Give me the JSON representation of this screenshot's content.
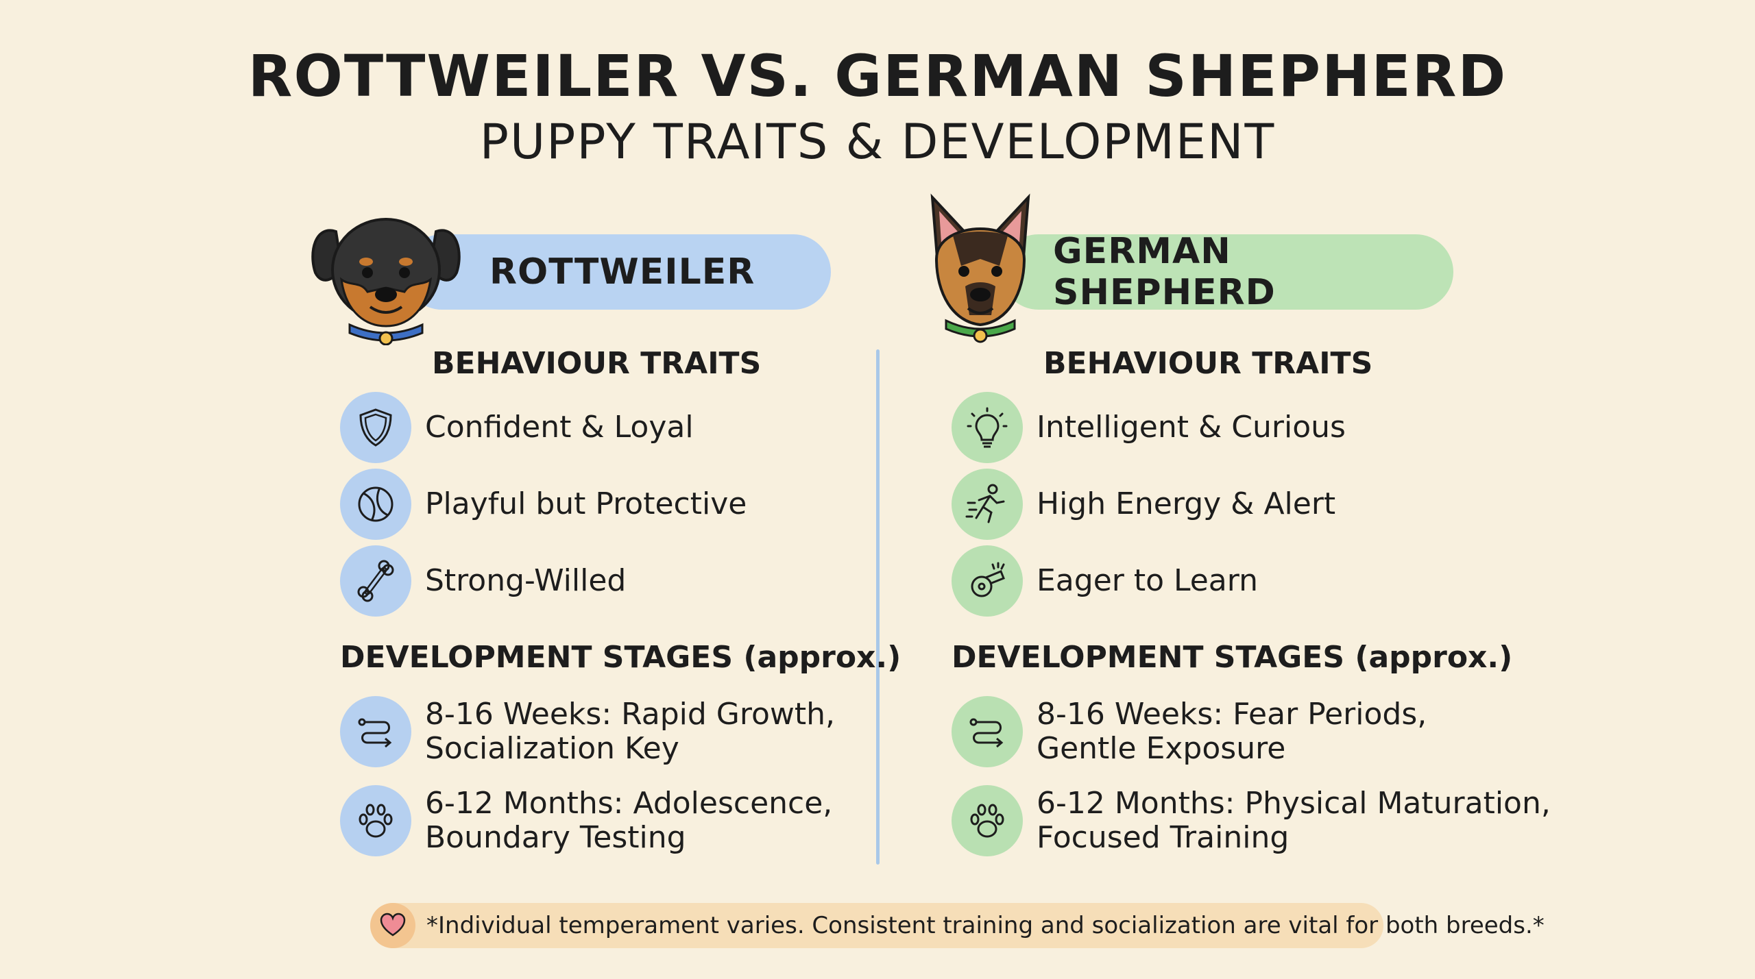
{
  "title": "ROTTWEILER VS. GERMAN SHEPHERD",
  "subtitle": "PUPPY TRAITS & DEVELOPMENT",
  "colors": {
    "background": "#f8f0de",
    "rottweiler_accent": "#b9d3f2",
    "german_shepherd_accent": "#bde3b6",
    "footer_bg": "#f6deb8"
  },
  "rottweiler": {
    "name": "ROTTWEILER",
    "behaviour_heading": "BEHAVIOUR TRAITS",
    "traits": [
      {
        "icon": "shield-icon",
        "label": "Confident & Loyal"
      },
      {
        "icon": "ball-icon",
        "label": "Playful but Protective"
      },
      {
        "icon": "bone-icon",
        "label": "Strong-Willed"
      }
    ],
    "development_heading": "DEVELOPMENT STAGES (approx.)",
    "stages": [
      {
        "icon": "path-icon",
        "line1": "8-16 Weeks: Rapid Growth,",
        "line2": "Socialization Key"
      },
      {
        "icon": "paw-icon",
        "line1": "6-12 Months: Adolescence,",
        "line2": "Boundary Testing"
      }
    ]
  },
  "german_shepherd": {
    "name": "GERMAN SHEPHERD",
    "behaviour_heading": "BEHAVIOUR TRAITS",
    "traits": [
      {
        "icon": "lightbulb-icon",
        "label": "Intelligent & Curious"
      },
      {
        "icon": "running-icon",
        "label": "High Energy & Alert"
      },
      {
        "icon": "whistle-icon",
        "label": "Eager to Learn"
      }
    ],
    "development_heading": "DEVELOPMENT STAGES (approx.)",
    "stages": [
      {
        "icon": "path-icon",
        "line1": "8-16 Weeks: Fear Periods,",
        "line2": "Gentle Exposure"
      },
      {
        "icon": "paw-icon",
        "line1": "6-12 Months: Physical Maturation,",
        "line2": "Focused Training"
      }
    ]
  },
  "footer": {
    "icon": "heart-icon",
    "text": "*Individual temperament varies. Consistent training and socialization are vital for both breeds.*"
  }
}
